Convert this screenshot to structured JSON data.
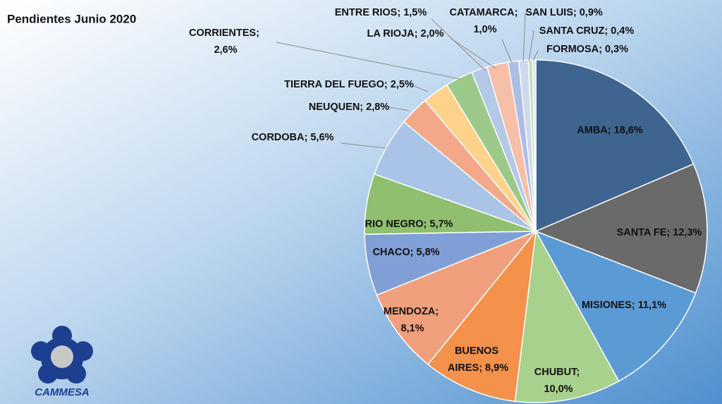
{
  "chart_data": {
    "type": "pie",
    "title": "Pendientes Junio 2020",
    "logo_text": "CAMMESA",
    "categories": [
      "AMBA",
      "SANTA FE",
      "MISIONES",
      "CHUBUT",
      "BUENOS AIRES",
      "MENDOZA",
      "CHACO",
      "RIO NEGRO",
      "CORDOBA",
      "NEUQUEN",
      "TIERRA DEL FUEGO",
      "CORRIENTES",
      "ENTRE RIOS",
      "LA RIOJA",
      "CATAMARCA",
      "SAN LUIS",
      "SANTA CRUZ",
      "FORMOSA"
    ],
    "values": [
      18.6,
      12.3,
      11.1,
      10.0,
      8.9,
      8.1,
      5.8,
      5.7,
      5.6,
      2.8,
      2.5,
      2.6,
      1.5,
      2.0,
      1.0,
      0.9,
      0.4,
      0.3
    ],
    "value_labels": [
      "AMBA; 18,6%",
      "SANTA FE; 12,3%",
      "MISIONES; 11,1%",
      "CHUBUT; 10,0%",
      "BUENOS AIRES; 8,9%",
      "MENDOZA; 8,1%",
      "CHACO; 5,8%",
      "RIO NEGRO; 5,7%",
      "CORDOBA; 5,6%",
      "NEUQUEN; 2,8%",
      "TIERRA DEL FUEGO; 2,5%",
      "CORRIENTES; 2,6%",
      "ENTRE RIOS; 1,5%",
      "LA RIOJA; 2,0%",
      "CATAMARCA; 1,0%",
      "SAN LUIS; 0,9%",
      "SANTA CRUZ; 0,4%",
      "FORMOSA; 0,3%"
    ],
    "colors": [
      "#3e6590",
      "#6a6a6a",
      "#5b9bd5",
      "#a9d18e",
      "#f4914a",
      "#f0a07c",
      "#7f9fd6",
      "#8fbf6f",
      "#a9c4e6",
      "#f4a88a",
      "#fdd38c",
      "#9cc98a",
      "#b4c8e8",
      "#f6bfa8",
      "#aebde6",
      "#cfd9ee",
      "#c5e0b4",
      "#d4e3f3"
    ]
  }
}
